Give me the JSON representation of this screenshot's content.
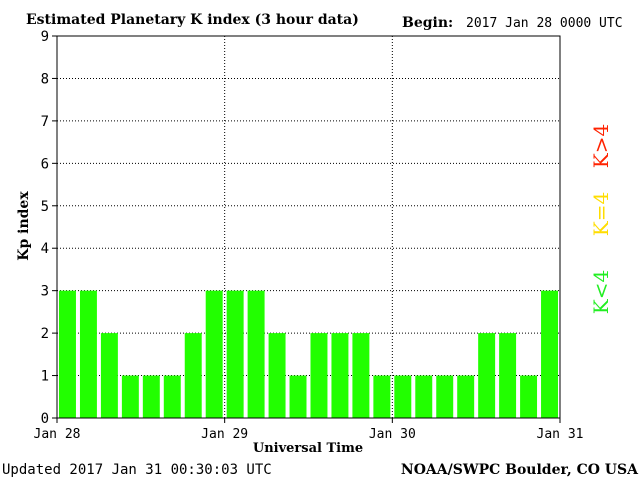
{
  "header": {
    "title": "Estimated Planetary K index (3 hour data)",
    "begin_label": "Begin:",
    "begin_value": "2017 Jan 28 0000 UTC"
  },
  "footer": {
    "updated": "Updated 2017 Jan 31 00:30:03 UTC",
    "source": "NOAA/SWPC Boulder, CO USA"
  },
  "legend": [
    {
      "label": "K>4",
      "color": "#ff2200"
    },
    {
      "label": "K=4",
      "color": "#ffdd00"
    },
    {
      "label": "K<4",
      "color": "#22ee22"
    }
  ],
  "chart_data": {
    "type": "bar",
    "title": "Estimated Planetary K index (3 hour data)",
    "xlabel": "Universal Time",
    "ylabel": "Kp index",
    "ylim": [
      0,
      9
    ],
    "yticks": [
      "0",
      "1",
      "2",
      "3",
      "4",
      "5",
      "6",
      "7",
      "8",
      "9"
    ],
    "xtick_labels": [
      "Jan 28",
      "Jan 29",
      "Jan 30",
      "Jan 31"
    ],
    "grid": true,
    "bar_color": "#22ff00",
    "x": [
      "Jan 28 00",
      "Jan 28 03",
      "Jan 28 06",
      "Jan 28 09",
      "Jan 28 12",
      "Jan 28 15",
      "Jan 28 18",
      "Jan 28 21",
      "Jan 29 00",
      "Jan 29 03",
      "Jan 29 06",
      "Jan 29 09",
      "Jan 29 12",
      "Jan 29 15",
      "Jan 29 18",
      "Jan 29 21",
      "Jan 30 00",
      "Jan 30 03",
      "Jan 30 06",
      "Jan 30 09",
      "Jan 30 12",
      "Jan 30 15",
      "Jan 30 18",
      "Jan 30 21"
    ],
    "values": [
      3,
      3,
      2,
      1,
      1,
      1,
      2,
      3,
      3,
      3,
      2,
      1,
      2,
      2,
      2,
      1,
      1,
      1,
      1,
      1,
      2,
      2,
      1,
      3
    ]
  }
}
